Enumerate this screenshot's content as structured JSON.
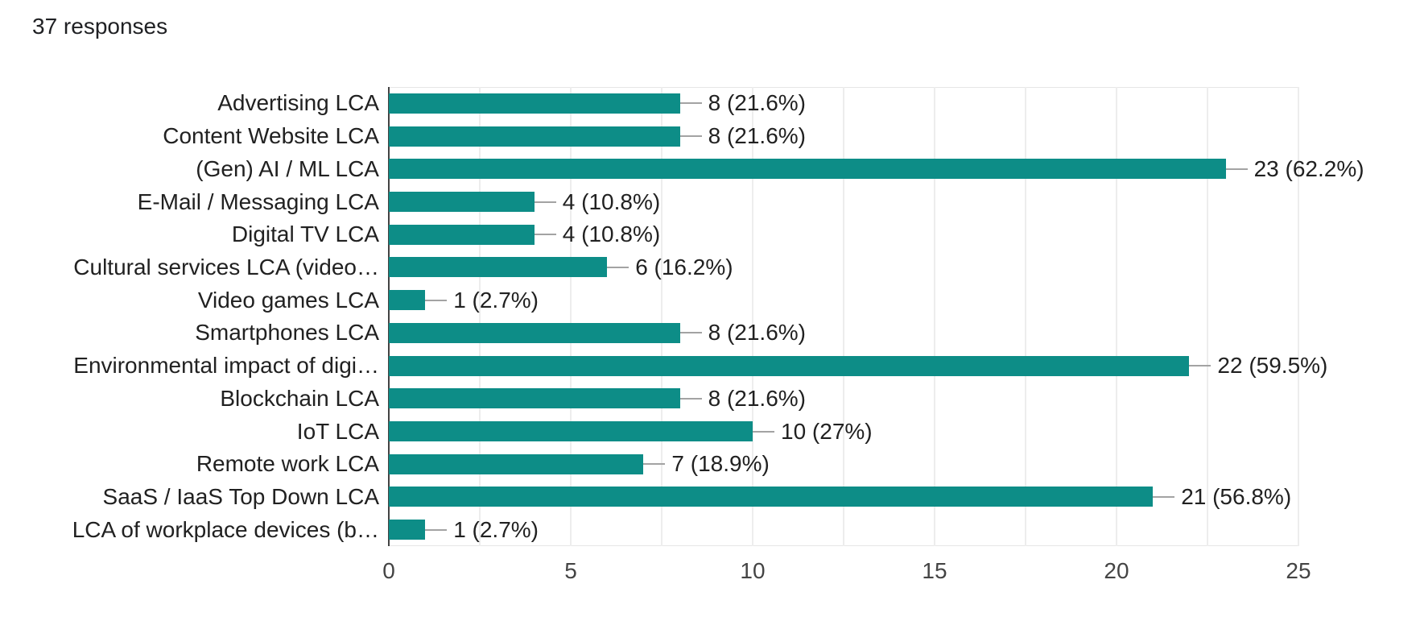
{
  "header": {
    "response_count": "37 responses"
  },
  "chart_data": {
    "type": "bar",
    "orientation": "horizontal",
    "title": "37 responses",
    "categories": [
      "Advertising LCA",
      "Content Website LCA",
      "(Gen) AI / ML LCA",
      "E-Mail / Messaging LCA",
      "Digital TV LCA",
      "Cultural services LCA (video…",
      "Video games LCA",
      "Smartphones LCA",
      "Environmental impact of digi…",
      "Blockchain LCA",
      "IoT LCA",
      "Remote work LCA",
      "SaaS / IaaS Top Down LCA",
      "LCA of workplace devices (b…"
    ],
    "values": [
      8,
      8,
      23,
      4,
      4,
      6,
      1,
      8,
      22,
      8,
      10,
      7,
      21,
      1
    ],
    "value_labels": [
      "8 (21.6%)",
      "8 (21.6%)",
      "23 (62.2%)",
      "4 (10.8%)",
      "4 (10.8%)",
      "6 (16.2%)",
      "1 (2.7%)",
      "8 (21.6%)",
      "22 (59.5%)",
      "8 (21.6%)",
      "10 (27%)",
      "7 (18.9%)",
      "21 (56.8%)",
      "1 (2.7%)"
    ],
    "xlabel": "",
    "ylabel": "",
    "xlim": [
      0,
      25
    ],
    "x_ticks": [
      0,
      5,
      10,
      15,
      20,
      25
    ],
    "minor_grid_step": 2.5,
    "grid": true,
    "legend": "none"
  },
  "colors": {
    "bar": "#0d8d87",
    "axis_line": "#424242",
    "gridline": "#ededed",
    "plot_border": "#e6e6e6",
    "leader_line": "#a3a3a3",
    "label_text": "#212121",
    "value_text": "#212121",
    "tick_text": "#444444",
    "header_text": "#202124",
    "background": "#ffffff"
  }
}
